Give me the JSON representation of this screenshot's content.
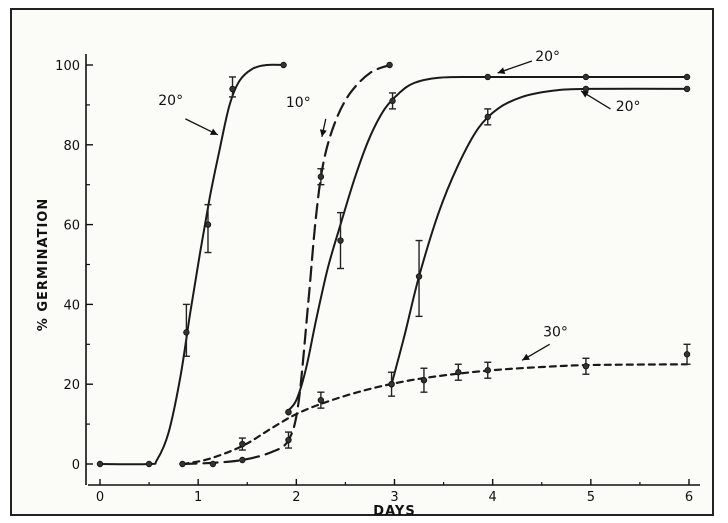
{
  "chart_data": {
    "type": "line",
    "xlabel": "DAYS",
    "ylabel": "% GERMINATION",
    "xlim": [
      0,
      6
    ],
    "ylim": [
      0,
      100
    ],
    "xticks": [
      "0",
      "1",
      "2",
      "3",
      "4",
      "5",
      "6"
    ],
    "yticks": [
      "0",
      "20",
      "40",
      "60",
      "80",
      "100"
    ],
    "grid": false,
    "legend": "none",
    "series": [
      {
        "name": "20°",
        "style": "solid",
        "points": [
          [
            0.0,
            0
          ],
          [
            0.5,
            0
          ],
          [
            0.88,
            33
          ],
          [
            1.1,
            60
          ],
          [
            1.35,
            94
          ],
          [
            1.42,
            97
          ],
          [
            1.87,
            100
          ]
        ],
        "markers": [
          [
            0.0,
            0
          ],
          [
            0.5,
            0
          ],
          [
            0.88,
            33
          ],
          [
            1.1,
            60
          ],
          [
            1.35,
            94
          ],
          [
            1.87,
            100
          ]
        ],
        "errors": [
          [
            0.88,
            27,
            40
          ],
          [
            1.1,
            53,
            65
          ],
          [
            1.35,
            92,
            97
          ]
        ],
        "curve": [
          [
            0.0,
            0
          ],
          [
            0.5,
            0
          ],
          [
            0.58,
            1
          ],
          [
            0.7,
            8
          ],
          [
            0.82,
            22
          ],
          [
            0.92,
            38
          ],
          [
            1.02,
            53
          ],
          [
            1.12,
            67
          ],
          [
            1.22,
            79
          ],
          [
            1.32,
            90
          ],
          [
            1.42,
            96
          ],
          [
            1.55,
            99
          ],
          [
            1.7,
            100
          ],
          [
            1.87,
            100
          ]
        ]
      },
      {
        "name": "10°",
        "style": "dashed",
        "points": [
          [
            0.84,
            0
          ],
          [
            1.15,
            0
          ],
          [
            1.45,
            1
          ],
          [
            1.92,
            6
          ],
          [
            2.25,
            72
          ],
          [
            2.95,
            100
          ]
        ],
        "markers": [
          [
            0.84,
            0
          ],
          [
            1.15,
            0
          ],
          [
            1.45,
            1
          ],
          [
            1.92,
            6
          ],
          [
            2.25,
            72
          ],
          [
            2.95,
            100
          ]
        ],
        "errors": [
          [
            1.92,
            4,
            8
          ],
          [
            2.25,
            70,
            74
          ]
        ],
        "curve": [
          [
            0.84,
            0
          ],
          [
            1.15,
            0.3
          ],
          [
            1.45,
            1
          ],
          [
            1.75,
            3
          ],
          [
            1.92,
            6
          ],
          [
            2.02,
            15
          ],
          [
            2.12,
            40
          ],
          [
            2.2,
            62
          ],
          [
            2.28,
            76
          ],
          [
            2.4,
            86
          ],
          [
            2.55,
            93
          ],
          [
            2.75,
            98
          ],
          [
            2.95,
            100
          ]
        ]
      },
      {
        "name": "20°",
        "style": "solid",
        "points": [
          [
            1.92,
            13
          ],
          [
            2.45,
            56
          ],
          [
            2.98,
            91
          ],
          [
            3.95,
            97
          ],
          [
            4.95,
            97
          ],
          [
            5.98,
            97
          ]
        ],
        "markers": [
          [
            1.92,
            13
          ],
          [
            2.45,
            56
          ],
          [
            2.98,
            91
          ],
          [
            3.95,
            97
          ],
          [
            4.95,
            97
          ],
          [
            5.98,
            97
          ]
        ],
        "errors": [
          [
            2.45,
            49,
            63
          ],
          [
            2.98,
            89,
            93
          ]
        ],
        "curve": [
          [
            1.9,
            13
          ],
          [
            2.0,
            16
          ],
          [
            2.1,
            24
          ],
          [
            2.2,
            36
          ],
          [
            2.32,
            49
          ],
          [
            2.45,
            60
          ],
          [
            2.6,
            72
          ],
          [
            2.75,
            82
          ],
          [
            2.9,
            89
          ],
          [
            3.05,
            93
          ],
          [
            3.2,
            95.5
          ],
          [
            3.45,
            96.8
          ],
          [
            3.8,
            97
          ],
          [
            4.5,
            97
          ],
          [
            5.98,
            97
          ]
        ]
      },
      {
        "name": "20°",
        "style": "solid",
        "points": [
          [
            2.97,
            20
          ],
          [
            3.25,
            47
          ],
          [
            3.95,
            87
          ],
          [
            4.95,
            94
          ],
          [
            5.98,
            94
          ]
        ],
        "markers": [
          [
            2.97,
            20
          ],
          [
            3.25,
            47
          ],
          [
            3.95,
            87
          ],
          [
            4.95,
            94
          ],
          [
            5.98,
            94
          ]
        ],
        "errors": [
          [
            3.25,
            37,
            56
          ],
          [
            3.95,
            85,
            89
          ]
        ],
        "curve": [
          [
            2.97,
            20
          ],
          [
            3.1,
            32
          ],
          [
            3.25,
            47
          ],
          [
            3.45,
            63
          ],
          [
            3.65,
            75
          ],
          [
            3.85,
            84
          ],
          [
            4.05,
            89
          ],
          [
            4.3,
            92
          ],
          [
            4.6,
            93.5
          ],
          [
            4.95,
            94
          ],
          [
            5.98,
            94
          ]
        ]
      },
      {
        "name": "30°",
        "style": "dashed",
        "points": [
          [
            0.84,
            0
          ],
          [
            1.45,
            5
          ],
          [
            1.92,
            13
          ],
          [
            2.25,
            16
          ],
          [
            2.97,
            20
          ],
          [
            3.3,
            21
          ],
          [
            3.65,
            23
          ],
          [
            3.95,
            23.5
          ],
          [
            4.95,
            24.5
          ],
          [
            5.98,
            27.5
          ]
        ],
        "markers": [
          [
            1.45,
            5
          ],
          [
            1.92,
            13
          ],
          [
            2.25,
            16
          ],
          [
            2.97,
            20
          ],
          [
            3.3,
            21
          ],
          [
            3.65,
            23
          ],
          [
            3.95,
            23.5
          ],
          [
            4.95,
            24.5
          ],
          [
            5.98,
            27.5
          ]
        ],
        "errors": [
          [
            1.45,
            3.5,
            6.5
          ],
          [
            2.25,
            14,
            18
          ],
          [
            2.97,
            17,
            23
          ],
          [
            3.3,
            18,
            24
          ],
          [
            3.65,
            21,
            25
          ],
          [
            3.95,
            21.5,
            25.5
          ],
          [
            4.95,
            22.5,
            26.5
          ],
          [
            5.98,
            25,
            30
          ]
        ],
        "curve": [
          [
            0.84,
            0
          ],
          [
            1.1,
            1.2
          ],
          [
            1.45,
            4.5
          ],
          [
            1.75,
            9
          ],
          [
            2.0,
            12.5
          ],
          [
            2.3,
            15.5
          ],
          [
            2.7,
            18.5
          ],
          [
            3.1,
            20.7
          ],
          [
            3.5,
            22.2
          ],
          [
            4.0,
            23.5
          ],
          [
            4.5,
            24.3
          ],
          [
            5.0,
            24.8
          ],
          [
            5.98,
            25
          ]
        ]
      }
    ],
    "annotations": [
      {
        "text": "20°",
        "x": 0.72,
        "y": 90
      },
      {
        "text": "10°",
        "x": 2.02,
        "y": 89.5
      },
      {
        "text": "20°",
        "x": 4.56,
        "y": 101
      },
      {
        "text": "20°",
        "x": 5.38,
        "y": 88.5
      },
      {
        "text": "30°",
        "x": 4.64,
        "y": 32
      }
    ]
  }
}
